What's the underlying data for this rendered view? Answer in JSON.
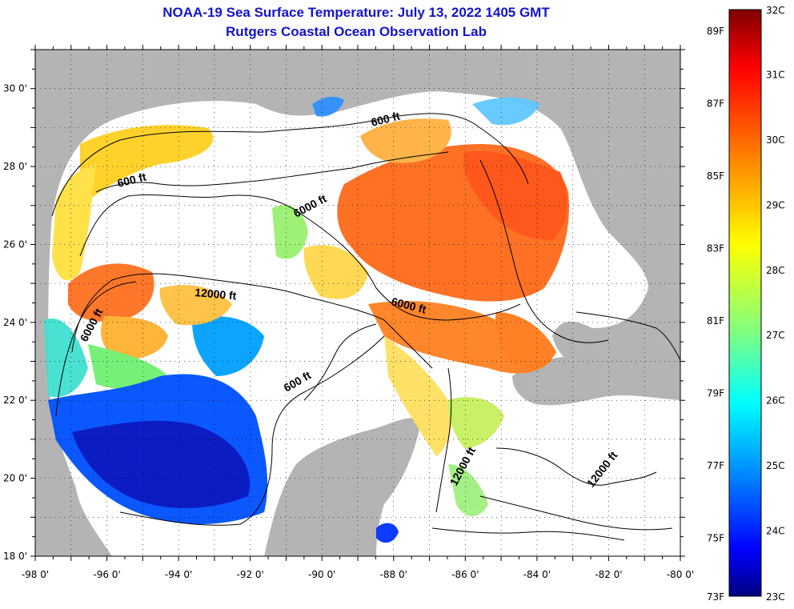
{
  "title": "NOAA-19 Sea Surface Temperature:  July 13, 2022 1405 GMT",
  "subtitle": "Rutgers Coastal Ocean Observation Lab",
  "lon_ticks": [
    "-98 0'",
    "-96 0'",
    "-94 0'",
    "-92 0'",
    "-90 0'",
    "-88 0'",
    "-86 0'",
    "-84 0'",
    "-82 0'",
    "-80 0'"
  ],
  "lat_ticks": [
    "30 0'",
    "28 0'",
    "26 0'",
    "24 0'",
    "22 0'",
    "20 0'",
    "18 0'"
  ],
  "contour_labels": [
    "600 ft",
    "600 ft",
    "600 ft",
    "6000 ft",
    "6000 ft",
    "6000 ft",
    "12000 ft",
    "12000 ft",
    "12000 ft"
  ],
  "colorbar": {
    "fahrenheit": [
      "89F",
      "87F",
      "85F",
      "83F",
      "81F",
      "79F",
      "77F",
      "75F",
      "73F"
    ],
    "celsius": [
      "32C",
      "31C",
      "30C",
      "29C",
      "28C",
      "27C",
      "26C",
      "25C",
      "24C",
      "23C"
    ]
  },
  "colors": {
    "title": "#1414c8",
    "land": "#b4b4b4",
    "scale": [
      "#800000",
      "#ff0000",
      "#ff8000",
      "#ffff00",
      "#80ff80",
      "#00ffff",
      "#0080ff",
      "#0000ff",
      "#000080"
    ]
  }
}
